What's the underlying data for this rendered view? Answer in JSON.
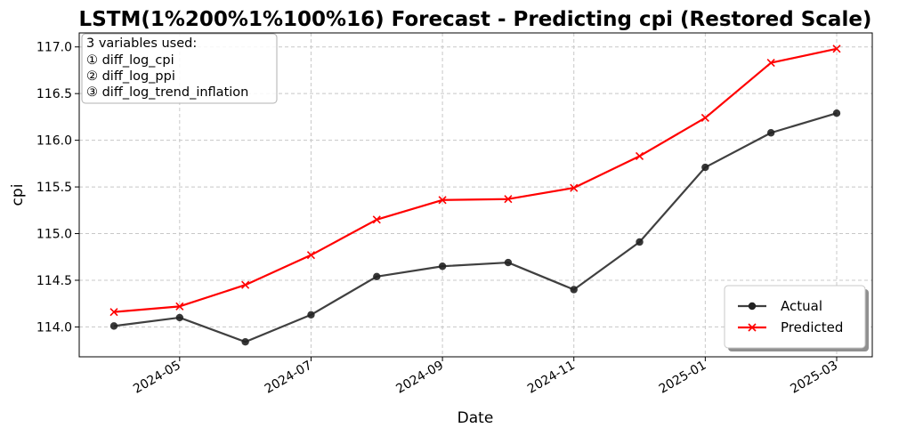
{
  "chart_data": {
    "type": "line",
    "title": "LSTM(1%200%1%100%16) Forecast - Predicting cpi (Restored Scale)",
    "xlabel": "Date",
    "ylabel": "cpi",
    "x": [
      "2024-04",
      "2024-05",
      "2024-06",
      "2024-07",
      "2024-08",
      "2024-09",
      "2024-10",
      "2024-11",
      "2024-12",
      "2025-01",
      "2025-02",
      "2025-03"
    ],
    "x_ticks": [
      "2024-05",
      "2024-07",
      "2024-09",
      "2024-11",
      "2025-01",
      "2025-03"
    ],
    "y_ticks": [
      "114.0",
      "114.5",
      "115.0",
      "115.5",
      "116.0",
      "116.5",
      "117.0"
    ],
    "ylim": [
      113.68,
      117.15
    ],
    "grid": true,
    "legend_position": "lower-right",
    "series": [
      {
        "name": "Actual",
        "color": "#404040",
        "marker": "circle",
        "values": [
          114.01,
          114.1,
          113.84,
          114.13,
          114.54,
          114.65,
          114.69,
          114.4,
          114.91,
          115.71,
          116.08,
          116.29
        ]
      },
      {
        "name": "Predicted",
        "color": "#ff0000",
        "marker": "x",
        "values": [
          114.16,
          114.22,
          114.45,
          114.77,
          115.15,
          115.36,
          115.37,
          115.49,
          115.83,
          116.24,
          116.83,
          116.98
        ]
      }
    ],
    "annotation": {
      "lines": [
        "3 variables used:",
        "① diff_log_cpi",
        "② diff_log_ppi",
        "③ diff_log_trend_inflation"
      ],
      "position": "top-left"
    }
  }
}
